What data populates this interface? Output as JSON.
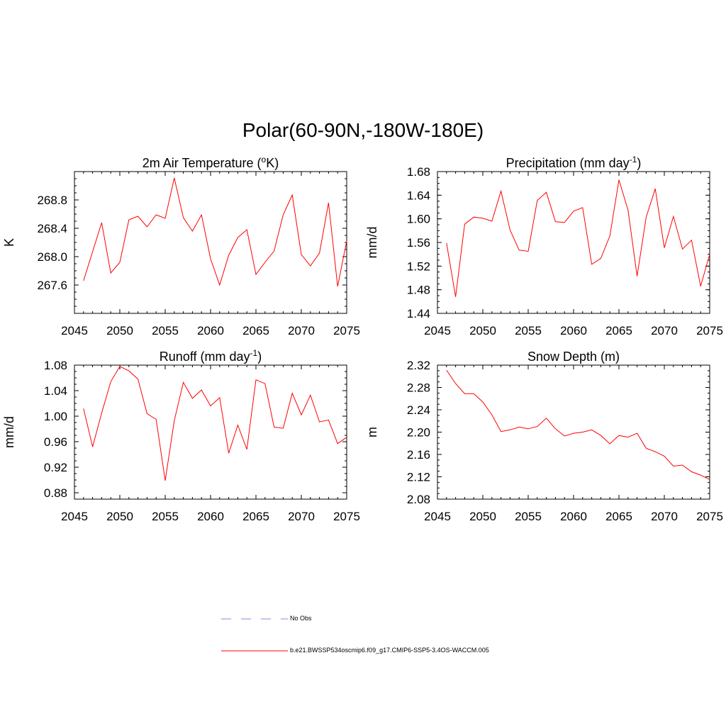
{
  "figure": {
    "title": "Polar(60-90N,-180W-180E)",
    "legend": {
      "obs_label": "No Obs",
      "obs_color": "#a0a0e0",
      "model_label": "b.e21.BWSSP534oscmip6.f09_g17.CMIP6-SSP5-3.4OS-WACCM.005",
      "model_color": "#ff0000"
    }
  },
  "chart_data": [
    {
      "type": "line",
      "title": "2m Air Temperature (°K)",
      "title_main": "2m Air Temperature (",
      "title_sup": "o",
      "title_rest": "K)",
      "xlabel": "",
      "ylabel": "K",
      "xlim": [
        2045,
        2075
      ],
      "ylim": [
        267.2,
        269.2
      ],
      "xticks": [
        2045,
        2050,
        2055,
        2060,
        2065,
        2070,
        2075
      ],
      "xtick_labels": [
        "2045",
        "2050",
        "2055",
        "2060",
        "2065",
        "2070",
        "2075"
      ],
      "yticks": [
        267.6,
        268.0,
        268.4,
        268.8
      ],
      "ytick_labels": [
        "267.6",
        "268.0",
        "268.4",
        "268.8"
      ],
      "ytick_minor": 0.1,
      "series": [
        {
          "name": "b.e21.BWSSP534oscmip6.f09_g17.CMIP6-SSP5-3.4OS-WACCM.005",
          "color": "#ff0000",
          "x": [
            2046,
            2047,
            2048,
            2049,
            2050,
            2051,
            2052,
            2053,
            2054,
            2055,
            2056,
            2057,
            2058,
            2059,
            2060,
            2061,
            2062,
            2063,
            2064,
            2065,
            2066,
            2067,
            2068,
            2069,
            2070,
            2071,
            2072,
            2073,
            2074,
            2075
          ],
          "values": [
            267.66,
            268.07,
            268.48,
            267.77,
            267.92,
            268.52,
            268.57,
            268.42,
            268.59,
            268.54,
            269.11,
            268.55,
            268.36,
            268.59,
            267.97,
            267.6,
            268.02,
            268.27,
            268.38,
            267.75,
            267.92,
            268.08,
            268.59,
            268.87,
            268.03,
            267.87,
            268.05,
            268.76,
            267.58,
            268.22
          ]
        }
      ]
    },
    {
      "type": "line",
      "title": "Precipitation (mm day-1)",
      "title_main": "Precipitation (mm day",
      "title_sup": "-1",
      "title_rest": ")",
      "xlabel": "",
      "ylabel": "mm/d",
      "xlim": [
        2045,
        2075
      ],
      "ylim": [
        1.44,
        1.68
      ],
      "xticks": [
        2045,
        2050,
        2055,
        2060,
        2065,
        2070,
        2075
      ],
      "xtick_labels": [
        "2045",
        "2050",
        "2055",
        "2060",
        "2065",
        "2070",
        "2075"
      ],
      "yticks": [
        1.44,
        1.48,
        1.52,
        1.56,
        1.6,
        1.64,
        1.68
      ],
      "ytick_labels": [
        "1.44",
        "1.48",
        "1.52",
        "1.56",
        "1.60",
        "1.64",
        "1.68"
      ],
      "ytick_minor": 0.01,
      "series": [
        {
          "name": "b.e21.BWSSP534oscmip6.f09_g17.CMIP6-SSP5-3.4OS-WACCM.005",
          "color": "#ff0000",
          "x": [
            2046,
            2047,
            2048,
            2049,
            2050,
            2051,
            2052,
            2053,
            2054,
            2055,
            2056,
            2057,
            2058,
            2059,
            2060,
            2061,
            2062,
            2063,
            2064,
            2065,
            2066,
            2067,
            2068,
            2069,
            2070,
            2071,
            2072,
            2073,
            2074,
            2075
          ],
          "values": [
            1.559,
            1.468,
            1.591,
            1.603,
            1.601,
            1.596,
            1.647,
            1.581,
            1.547,
            1.545,
            1.631,
            1.645,
            1.595,
            1.594,
            1.613,
            1.619,
            1.523,
            1.533,
            1.571,
            1.666,
            1.615,
            1.503,
            1.603,
            1.651,
            1.551,
            1.604,
            1.549,
            1.564,
            1.486,
            1.54
          ]
        }
      ]
    },
    {
      "type": "line",
      "title": "Runoff (mm day-1)",
      "title_main": "Runoff (mm day",
      "title_sup": "-1",
      "title_rest": ")",
      "xlabel": "",
      "ylabel": "mm/d",
      "xlim": [
        2045,
        2075
      ],
      "ylim": [
        0.87,
        1.08
      ],
      "xticks": [
        2045,
        2050,
        2055,
        2060,
        2065,
        2070,
        2075
      ],
      "xtick_labels": [
        "2045",
        "2050",
        "2055",
        "2060",
        "2065",
        "2070",
        "2075"
      ],
      "yticks": [
        0.88,
        0.92,
        0.96,
        1.0,
        1.04,
        1.08
      ],
      "ytick_labels": [
        "0.88",
        "0.92",
        "0.96",
        "1.00",
        "1.04",
        "1.08"
      ],
      "ytick_minor": 0.01,
      "series": [
        {
          "name": "b.e21.BWSSP534oscmip6.f09_g17.CMIP6-SSP5-3.4OS-WACCM.005",
          "color": "#ff0000",
          "x": [
            2046,
            2047,
            2048,
            2049,
            2050,
            2051,
            2052,
            2053,
            2054,
            2055,
            2056,
            2057,
            2058,
            2059,
            2060,
            2061,
            2062,
            2063,
            2064,
            2065,
            2066,
            2067,
            2068,
            2069,
            2070,
            2071,
            2072,
            2073,
            2074,
            2075
          ],
          "values": [
            1.012,
            0.952,
            1.005,
            1.054,
            1.078,
            1.071,
            1.058,
            1.004,
            0.995,
            0.899,
            0.993,
            1.053,
            1.028,
            1.041,
            1.016,
            1.029,
            0.942,
            0.986,
            0.948,
            1.057,
            1.051,
            0.983,
            0.981,
            1.036,
            1.002,
            1.033,
            0.991,
            0.994,
            0.957,
            0.967
          ]
        }
      ]
    },
    {
      "type": "line",
      "title": "Snow Depth (m)",
      "title_main": "Snow Depth (m)",
      "title_sup": "",
      "title_rest": "",
      "xlabel": "",
      "ylabel": "m",
      "xlim": [
        2045,
        2075
      ],
      "ylim": [
        2.08,
        2.32
      ],
      "xticks": [
        2045,
        2050,
        2055,
        2060,
        2065,
        2070,
        2075
      ],
      "xtick_labels": [
        "2045",
        "2050",
        "2055",
        "2060",
        "2065",
        "2070",
        "2075"
      ],
      "yticks": [
        2.08,
        2.12,
        2.16,
        2.2,
        2.24,
        2.28,
        2.32
      ],
      "ytick_labels": [
        "2.08",
        "2.12",
        "2.16",
        "2.20",
        "2.24",
        "2.28",
        "2.32"
      ],
      "ytick_minor": 0.01,
      "series": [
        {
          "name": "b.e21.BWSSP534oscmip6.f09_g17.CMIP6-SSP5-3.4OS-WACCM.005",
          "color": "#ff0000",
          "x": [
            2046,
            2047,
            2048,
            2049,
            2050,
            2051,
            2052,
            2053,
            2054,
            2055,
            2056,
            2057,
            2058,
            2059,
            2060,
            2061,
            2062,
            2063,
            2064,
            2065,
            2066,
            2067,
            2068,
            2069,
            2070,
            2071,
            2072,
            2073,
            2074,
            2075
          ],
          "values": [
            2.311,
            2.287,
            2.269,
            2.269,
            2.254,
            2.231,
            2.201,
            2.204,
            2.209,
            2.206,
            2.21,
            2.225,
            2.206,
            2.193,
            2.198,
            2.2,
            2.204,
            2.194,
            2.179,
            2.194,
            2.191,
            2.198,
            2.171,
            2.165,
            2.157,
            2.139,
            2.141,
            2.129,
            2.123,
            2.115
          ]
        }
      ]
    }
  ]
}
